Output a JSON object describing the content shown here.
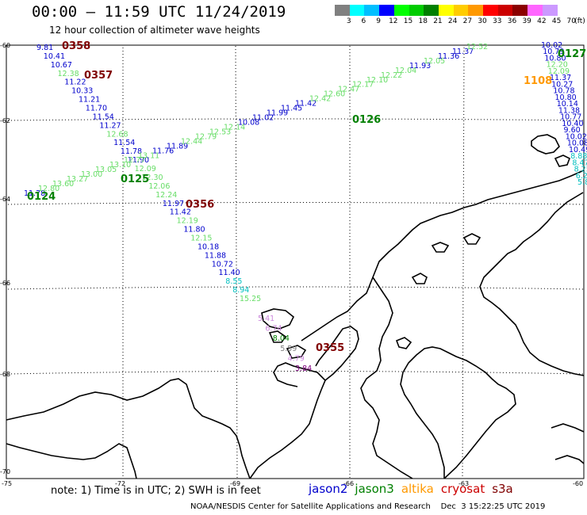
{
  "header": {
    "title": "00:00 – 11:59 UTC 11/24/2019",
    "subtitle": "12 hour collection of altimeter wave heights"
  },
  "colorbar": {
    "labels": [
      "3",
      "6",
      "9",
      "12",
      "15",
      "18",
      "21",
      "24",
      "27",
      "30",
      "33",
      "36",
      "39",
      "42",
      "45",
      "70",
      "(ft)"
    ],
    "colors": [
      "#808080",
      "#00ffff",
      "#00bfff",
      "#0000ff",
      "#00ff00",
      "#00cc00",
      "#008000",
      "#ffff00",
      "#ffcc00",
      "#ff9900",
      "#ff0000",
      "#cc0000",
      "#8b0000",
      "#ff66ff",
      "#cc99ff",
      "#ffffff",
      "#ffffff"
    ]
  },
  "axes": {
    "lon_labels": [
      "-75",
      "-72",
      "-69",
      "-66",
      "-63",
      "-60"
    ],
    "lat_labels": [
      "-60",
      "-62",
      "-64",
      "-66",
      "-68",
      "-70"
    ]
  },
  "colors": {
    "jason2": "#0000cc",
    "jason3": "#008000",
    "altika": "#ff9900",
    "cryosat": "#cc0000",
    "s3a": "#800000",
    "light_green": "#66dd66",
    "cyan": "#00bfbf",
    "pink": "#cc88dd"
  },
  "tracks": [
    {
      "id": "0358",
      "label": "0358",
      "color": "#800000",
      "values": [
        {
          "t": "9.81",
          "c": "#0000cc"
        },
        {
          "t": "10.41",
          "c": "#0000cc"
        },
        {
          "t": "10.67",
          "c": "#0000cc"
        },
        {
          "t": "12.38",
          "c": "#66dd66"
        },
        {
          "t": "11.22",
          "c": "#0000cc"
        },
        {
          "t": "10.33",
          "c": "#0000cc"
        },
        {
          "t": "11.21",
          "c": "#0000cc"
        },
        {
          "t": "11.70",
          "c": "#0000cc"
        },
        {
          "t": "11.54",
          "c": "#0000cc"
        },
        {
          "t": "11.27",
          "c": "#0000cc"
        },
        {
          "t": "12.68",
          "c": "#66dd66"
        },
        {
          "t": "11.54",
          "c": "#0000cc"
        },
        {
          "t": "11.78",
          "c": "#0000cc"
        },
        {
          "t": "11.90",
          "c": "#0000cc"
        },
        {
          "t": "12.09",
          "c": "#66dd66"
        },
        {
          "t": "12.30",
          "c": "#66dd66"
        },
        {
          "t": "12.06",
          "c": "#66dd66"
        },
        {
          "t": "12.24",
          "c": "#66dd66"
        },
        {
          "t": "11.97",
          "c": "#0000cc"
        },
        {
          "t": "11.42",
          "c": "#0000cc"
        },
        {
          "t": "12.19",
          "c": "#66dd66"
        },
        {
          "t": "11.80",
          "c": "#0000cc"
        },
        {
          "t": "12.15",
          "c": "#66dd66"
        },
        {
          "t": "10.18",
          "c": "#0000cc"
        },
        {
          "t": "11.88",
          "c": "#0000cc"
        },
        {
          "t": "10.72",
          "c": "#0000cc"
        },
        {
          "t": "11.40",
          "c": "#0000cc"
        },
        {
          "t": "8.55",
          "c": "#00bfbf"
        },
        {
          "t": "8.94",
          "c": "#00bfbf"
        },
        {
          "t": "15.25",
          "c": "#66dd66"
        }
      ]
    },
    {
      "id": "0357",
      "label": "0357",
      "color": "#800000"
    },
    {
      "id": "0356",
      "label": "0356",
      "color": "#800000"
    },
    {
      "id": "0355",
      "label": "0355",
      "color": "#800000"
    },
    {
      "id": "0124",
      "label": "0124",
      "color": "#008000",
      "values": [
        {
          "t": "11.78",
          "c": "#0000cc"
        },
        {
          "t": "12.80",
          "c": "#66dd66"
        },
        {
          "t": "13.60",
          "c": "#66dd66"
        },
        {
          "t": "13.27",
          "c": "#66dd66"
        },
        {
          "t": "13.00",
          "c": "#66dd66"
        },
        {
          "t": "13.05",
          "c": "#66dd66"
        },
        {
          "t": "13.10",
          "c": "#66dd66"
        },
        {
          "t": "12.77",
          "c": "#66dd66"
        },
        {
          "t": "13.11",
          "c": "#66dd66"
        },
        {
          "t": "11.76",
          "c": "#0000cc"
        },
        {
          "t": "11.89",
          "c": "#0000cc"
        },
        {
          "t": "12.44",
          "c": "#66dd66"
        },
        {
          "t": "12.79",
          "c": "#66dd66"
        },
        {
          "t": "12.53",
          "c": "#66dd66"
        },
        {
          "t": "12.14",
          "c": "#66dd66"
        },
        {
          "t": "10.08",
          "c": "#0000cc"
        },
        {
          "t": "11.02",
          "c": "#0000cc"
        },
        {
          "t": "11.99",
          "c": "#0000cc"
        },
        {
          "t": "11.45",
          "c": "#0000cc"
        },
        {
          "t": "11.42",
          "c": "#0000cc"
        },
        {
          "t": "12.42",
          "c": "#66dd66"
        },
        {
          "t": "12.60",
          "c": "#66dd66"
        },
        {
          "t": "12.47",
          "c": "#66dd66"
        },
        {
          "t": "12.17",
          "c": "#66dd66"
        },
        {
          "t": "12.10",
          "c": "#66dd66"
        },
        {
          "t": "12.22",
          "c": "#66dd66"
        },
        {
          "t": "12.04",
          "c": "#66dd66"
        },
        {
          "t": "11.93",
          "c": "#0000cc"
        },
        {
          "t": "12.05",
          "c": "#66dd66"
        },
        {
          "t": "11.36",
          "c": "#0000cc"
        },
        {
          "t": "11.37",
          "c": "#0000cc"
        },
        {
          "t": "12.52",
          "c": "#66dd66"
        }
      ]
    },
    {
      "id": "0125",
      "label": "0125",
      "color": "#008000"
    },
    {
      "id": "0126",
      "label": "0126",
      "color": "#008000"
    },
    {
      "id": "0127",
      "label": "0127",
      "color": "#008000",
      "values": [
        {
          "t": "10.02",
          "c": "#0000cc"
        },
        {
          "t": "10.79",
          "c": "#0000cc"
        },
        {
          "t": "10.80",
          "c": "#0000cc"
        },
        {
          "t": "12.20",
          "c": "#66dd66"
        },
        {
          "t": "12.09",
          "c": "#66dd66"
        },
        {
          "t": "11.37",
          "c": "#0000cc"
        },
        {
          "t": "10.27",
          "c": "#0000cc"
        },
        {
          "t": "10.78",
          "c": "#0000cc"
        },
        {
          "t": "10.80",
          "c": "#0000cc"
        },
        {
          "t": "10.14",
          "c": "#0000cc"
        },
        {
          "t": "11.38",
          "c": "#0000cc"
        },
        {
          "t": "10.77",
          "c": "#0000cc"
        },
        {
          "t": "10.40",
          "c": "#0000cc"
        },
        {
          "t": "9.60",
          "c": "#0000cc"
        },
        {
          "t": "10.02",
          "c": "#0000cc"
        },
        {
          "t": "10.08",
          "c": "#0000cc"
        },
        {
          "t": "10.49",
          "c": "#0000cc"
        },
        {
          "t": "8.88",
          "c": "#00bfbf"
        },
        {
          "t": "8.47",
          "c": "#00bfbf"
        },
        {
          "t": "8.25",
          "c": "#00bfbf"
        },
        {
          "t": "6.28",
          "c": "#00bfbf"
        },
        {
          "t": "5.8",
          "c": "#00bfbf"
        }
      ]
    },
    {
      "id": "1108",
      "label": "1108",
      "color": "#ff9900"
    }
  ],
  "peninsula_values": [
    {
      "t": "5.41",
      "c": "#cc88dd"
    },
    {
      "t": "6.74",
      "c": "#cc88dd"
    },
    {
      "t": "8.04",
      "c": "#008000"
    },
    {
      "t": "5.59",
      "c": "#808080"
    },
    {
      "t": "4.79",
      "c": "#cc88dd"
    },
    {
      "t": "3.84",
      "c": "#800080"
    }
  ],
  "legend": {
    "note": "note: 1) Time is in UTC; 2) SWH is in feet",
    "satellites": [
      {
        "name": "jason2",
        "color": "#0000cc"
      },
      {
        "name": "jason3",
        "color": "#008000"
      },
      {
        "name": "altika",
        "color": "#ff9900"
      },
      {
        "name": "cryosat",
        "color": "#cc0000"
      },
      {
        "name": "s3a",
        "color": "#800000"
      }
    ]
  },
  "credit": "NOAA/NESDIS Center for Satellite Applications and Research    Dec  3 15:22:25 UTC 2019"
}
